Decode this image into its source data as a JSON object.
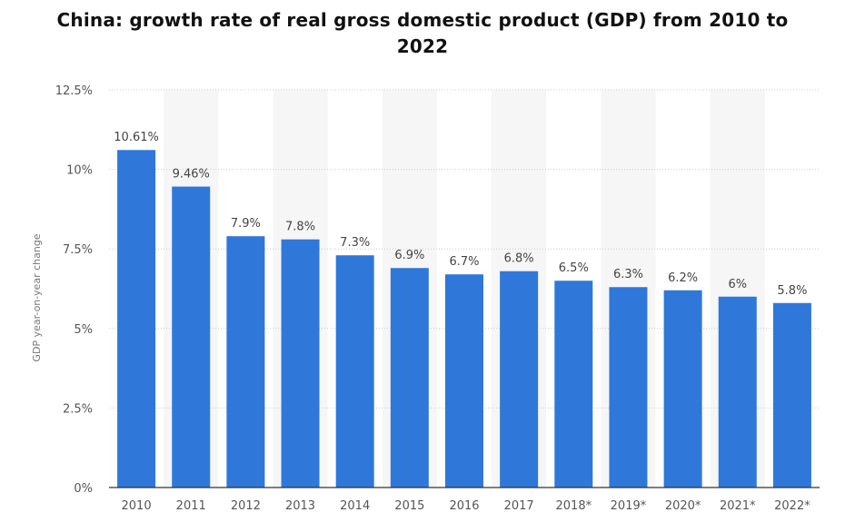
{
  "chart_data": {
    "type": "bar",
    "title": "China: growth rate of real gross domestic product (GDP) from 2010 to 2022",
    "xlabel": "",
    "ylabel": "GDP year-on-year change",
    "categories": [
      "2010",
      "2011",
      "2012",
      "2013",
      "2014",
      "2015",
      "2016",
      "2017",
      "2018*",
      "2019*",
      "2020*",
      "2021*",
      "2022*"
    ],
    "values": [
      10.61,
      9.46,
      7.9,
      7.8,
      7.3,
      6.9,
      6.7,
      6.8,
      6.5,
      6.3,
      6.2,
      6,
      5.8
    ],
    "value_labels": [
      "10.61%",
      "9.46%",
      "7.9%",
      "7.8%",
      "7.3%",
      "6.9%",
      "6.7%",
      "6.8%",
      "6.5%",
      "6.3%",
      "6.2%",
      "6%",
      "5.8%"
    ],
    "ylim": [
      0,
      12.5
    ],
    "yticks": [
      0,
      2.5,
      5,
      7.5,
      10,
      12.5
    ],
    "ytick_labels": [
      "0%",
      "2.5%",
      "5%",
      "7.5%",
      "10%",
      "12.5%"
    ],
    "grid": true,
    "legend": "none",
    "colors": {
      "bar": "#2f78d9",
      "grid": "#cccccc",
      "band": "#f6f6f6",
      "axis": "#333333"
    }
  }
}
